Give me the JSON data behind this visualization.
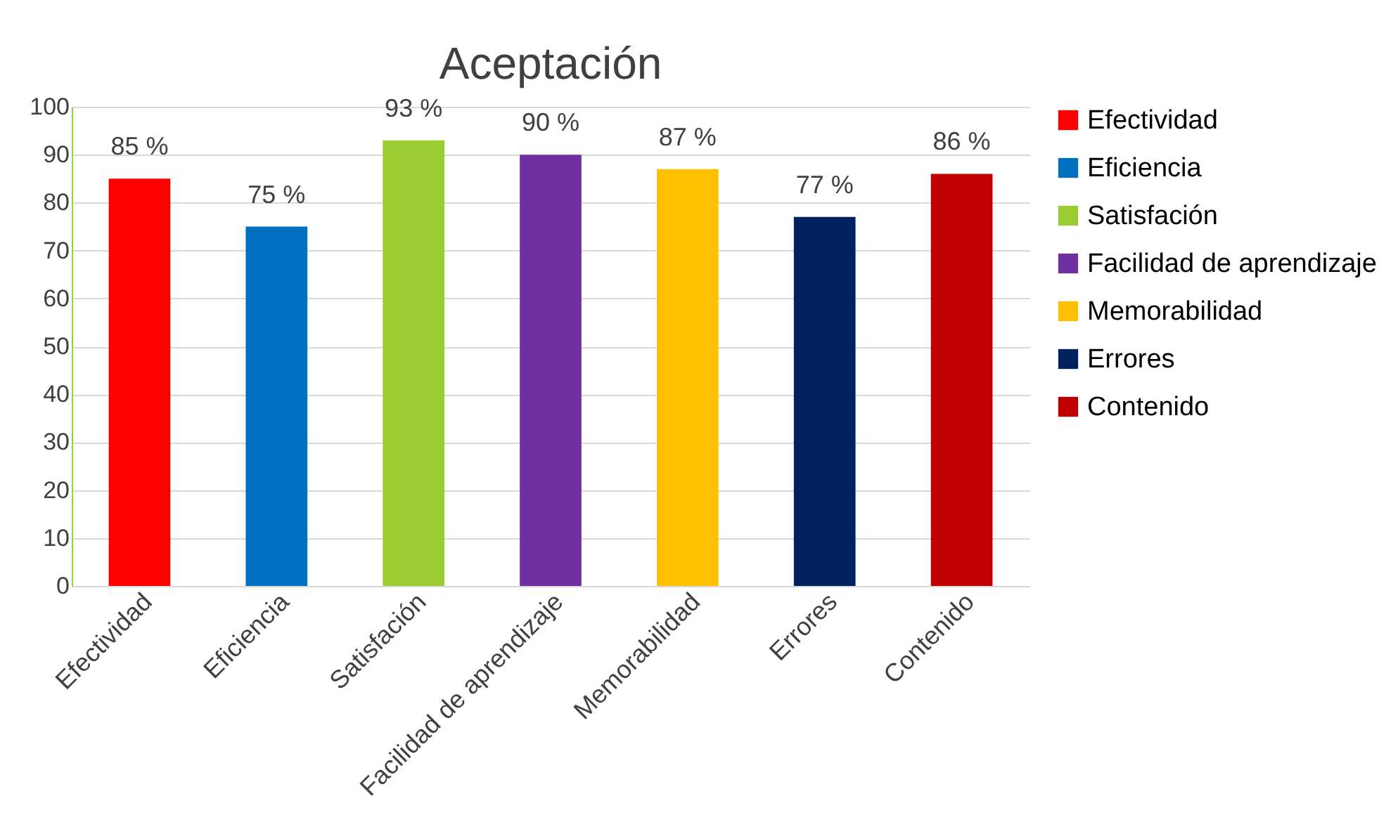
{
  "chart_data": {
    "type": "bar",
    "title": "Aceptación",
    "categories": [
      "Efectividad",
      "Eficiencia",
      "Satisfación",
      "Facilidad de aprendizaje",
      "Memorabilidad",
      "Errores",
      "Contenido"
    ],
    "series": [
      {
        "name": "Efectividad",
        "color": "#ff0000",
        "values": [
          85,
          null,
          null,
          null,
          null,
          null,
          null
        ],
        "value_labels": [
          "85 %",
          null,
          null,
          null,
          null,
          null,
          null
        ]
      },
      {
        "name": "Eficiencia",
        "color": "#0070c0",
        "values": [
          null,
          75,
          null,
          null,
          null,
          null,
          null
        ],
        "value_labels": [
          null,
          "75 %",
          null,
          null,
          null,
          null,
          null
        ]
      },
      {
        "name": "Satisfación",
        "color": "#9acd32",
        "values": [
          null,
          null,
          93,
          null,
          null,
          null,
          null
        ],
        "value_labels": [
          null,
          null,
          "93 %",
          null,
          null,
          null,
          null
        ]
      },
      {
        "name": "Facilidad de aprendizaje",
        "color": "#7030a0",
        "values": [
          null,
          null,
          null,
          90,
          null,
          null,
          null
        ],
        "value_labels": [
          null,
          null,
          null,
          "90 %",
          null,
          null,
          null
        ]
      },
      {
        "name": "Memorabilidad",
        "color": "#ffc000",
        "values": [
          null,
          null,
          null,
          null,
          87,
          null,
          null
        ],
        "value_labels": [
          null,
          null,
          null,
          null,
          "87 %",
          null,
          null
        ]
      },
      {
        "name": "Errores",
        "color": "#002060",
        "values": [
          null,
          null,
          null,
          null,
          null,
          77,
          null
        ],
        "value_labels": [
          null,
          null,
          null,
          null,
          null,
          "77 %",
          null
        ]
      },
      {
        "name": "Contenido",
        "color": "#c00000",
        "values": [
          null,
          null,
          null,
          null,
          null,
          null,
          86
        ],
        "value_labels": [
          null,
          null,
          null,
          null,
          null,
          null,
          "86 %"
        ]
      }
    ],
    "ylim": [
      0,
      100
    ],
    "yticks": [
      0,
      10,
      20,
      30,
      40,
      50,
      60,
      70,
      80,
      90,
      100
    ],
    "grid": "y",
    "legend": "right"
  }
}
